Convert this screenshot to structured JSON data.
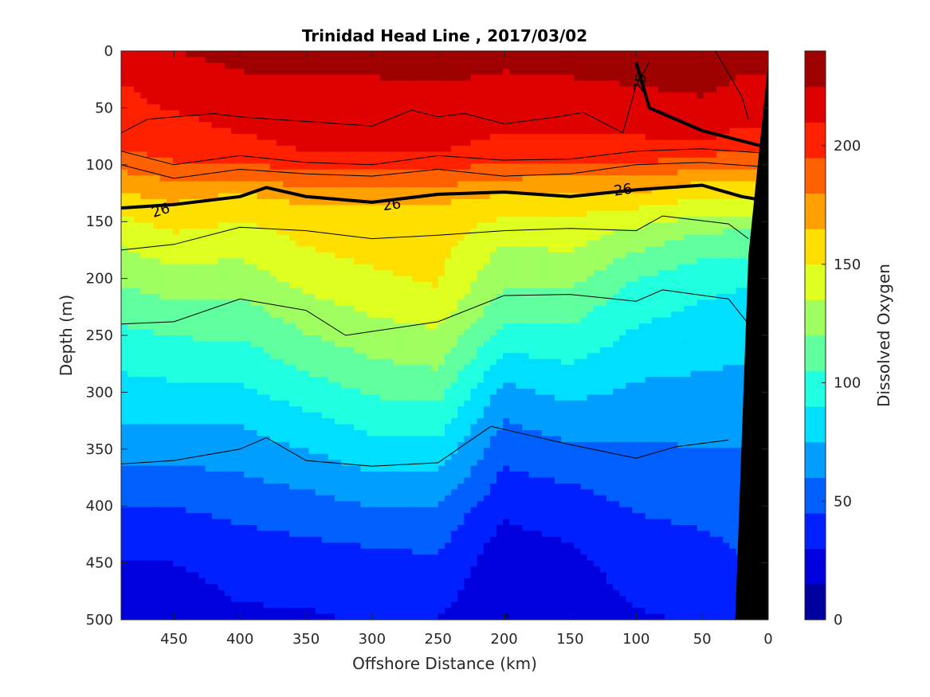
{
  "chart_data": {
    "type": "heatmap",
    "title": "Trinidad Head Line , 2017/03/02",
    "xlabel": "Offshore Distance (km)",
    "ylabel": "Depth (m)",
    "colorbar_label": "Dissolved Oxygen",
    "xlim": [
      490,
      0
    ],
    "ylim": [
      0,
      500
    ],
    "clim": [
      0,
      240
    ],
    "x_direction": "reversed",
    "y_direction": "reversed (depth increases downward)",
    "colormap": "jet",
    "x_ticks": [
      450,
      400,
      350,
      300,
      250,
      200,
      150,
      100,
      50,
      0
    ],
    "y_ticks": [
      0,
      50,
      100,
      150,
      200,
      250,
      300,
      350,
      400,
      450,
      500
    ],
    "colorbar_ticks": [
      0,
      50,
      100,
      150,
      200
    ],
    "bottom_mask": "black (seafloor)",
    "grid": false,
    "field": {
      "x": [
        490,
        450,
        400,
        350,
        300,
        250,
        200,
        150,
        100,
        50,
        20
      ],
      "profiles": [
        {
          "depth": [
            0,
            80,
            130,
            160,
            240,
            340,
            400,
            450,
            500
          ],
          "oxygen": [
            215,
            200,
            160,
            140,
            105,
            70,
            45,
            30,
            20
          ]
        },
        {
          "depth": [
            0,
            90,
            140,
            180,
            240,
            340,
            400,
            450,
            500
          ],
          "oxygen": [
            225,
            200,
            160,
            140,
            110,
            70,
            45,
            30,
            22
          ]
        },
        {
          "depth": [
            0,
            90,
            130,
            170,
            240,
            330,
            400,
            450,
            500
          ],
          "oxygen": [
            230,
            205,
            160,
            140,
            110,
            75,
            50,
            35,
            28
          ]
        },
        {
          "depth": [
            0,
            90,
            140,
            190,
            260,
            350,
            410,
            460,
            500
          ],
          "oxygen": [
            230,
            210,
            160,
            145,
            115,
            75,
            50,
            35,
            28
          ]
        },
        {
          "depth": [
            0,
            90,
            140,
            200,
            270,
            360,
            410,
            450,
            500
          ],
          "oxygen": [
            230,
            210,
            160,
            148,
            120,
            80,
            55,
            40,
            32
          ]
        },
        {
          "depth": [
            0,
            90,
            140,
            210,
            280,
            360,
            410,
            460,
            500
          ],
          "oxygen": [
            232,
            210,
            160,
            150,
            120,
            80,
            55,
            40,
            30
          ]
        },
        {
          "depth": [
            0,
            90,
            130,
            170,
            230,
            310,
            380,
            440,
            500
          ],
          "oxygen": [
            230,
            205,
            160,
            135,
            110,
            65,
            40,
            22,
            14
          ]
        },
        {
          "depth": [
            0,
            90,
            130,
            170,
            230,
            320,
            380,
            440,
            500
          ],
          "oxygen": [
            232,
            205,
            158,
            138,
            110,
            70,
            45,
            28,
            20
          ]
        },
        {
          "depth": [
            0,
            90,
            130,
            160,
            210,
            290,
            360,
            430,
            500
          ],
          "oxygen": [
            235,
            205,
            158,
            130,
            100,
            75,
            55,
            40,
            28
          ]
        },
        {
          "depth": [
            0,
            80,
            120,
            160,
            200,
            260,
            340,
            420,
            500
          ],
          "oxygen": [
            240,
            210,
            160,
            120,
            95,
            80,
            62,
            45,
            32
          ]
        },
        {
          "depth": [
            0,
            80,
            120,
            160,
            200,
            260,
            340,
            420,
            500
          ],
          "oxygen": [
            232,
            205,
            160,
            118,
            92,
            78,
            62,
            48,
            38
          ]
        }
      ]
    },
    "density_contours": [
      {
        "value": "25",
        "label_shown": true,
        "depths_at_x": [
          [
            100,
            10
          ],
          [
            90,
            50
          ],
          [
            80,
            55
          ],
          [
            50,
            70
          ],
          [
            0,
            85
          ]
        ]
      },
      {
        "value": "26",
        "label_shown": true,
        "depths_at_x": [
          [
            490,
            138
          ],
          [
            450,
            135
          ],
          [
            400,
            128
          ],
          [
            380,
            120
          ],
          [
            350,
            128
          ],
          [
            300,
            133
          ],
          [
            250,
            126
          ],
          [
            200,
            124
          ],
          [
            150,
            128
          ],
          [
            100,
            122
          ],
          [
            50,
            118
          ],
          [
            20,
            128
          ],
          [
            0,
            132
          ]
        ]
      }
    ],
    "contour_labels": [
      "25",
      "26",
      "26",
      "26"
    ]
  }
}
